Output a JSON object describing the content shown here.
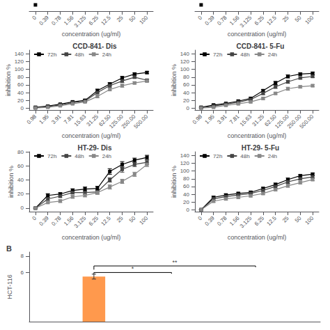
{
  "chart_data": [
    {
      "type": "line",
      "xlabel": "concentration (ug/ml)",
      "categories": [
        "0",
        "0.39",
        "0.78",
        "1.56",
        "3.125",
        "6.25",
        "12.5",
        "25",
        "50",
        "100"
      ],
      "values": [
        0.9,
        null,
        null,
        null,
        null,
        null,
        null,
        null,
        null,
        null
      ],
      "color": "#000000",
      "marker": "square",
      "ylim": [
        0,
        1
      ],
      "tick_labels": "x",
      "grid": false
    },
    {
      "type": "line",
      "xlabel": "concentration (ug/ml)",
      "categories": [
        "0",
        "0.39",
        "0.78",
        "1.56",
        "3.125",
        "6.25",
        "12.5",
        "25",
        "50",
        "100"
      ],
      "values": [
        0.9,
        null,
        null,
        null,
        null,
        null,
        null,
        null,
        null,
        null
      ],
      "color": "#000000",
      "marker": "square",
      "ylim": [
        0,
        1
      ],
      "tick_labels": "x",
      "grid": false
    },
    {
      "type": "line",
      "title": "CCD-841- Dis",
      "xlabel": "concentration (ug/ml)",
      "ylabel": "inhibition %",
      "categories": [
        "0.98",
        "1.95",
        "3.91",
        "7.81",
        "15.63",
        "31.25",
        "62.50",
        "125.00",
        "250.00",
        "500.00"
      ],
      "ylim": [
        -5,
        150
      ],
      "yticks": [
        0,
        20,
        40,
        60,
        80,
        100,
        120,
        140
      ],
      "grid": false,
      "legend": "upper left",
      "marker": "square",
      "series": [
        {
          "name": "72h",
          "color": "#000000",
          "values": [
            2,
            5,
            10,
            16,
            20,
            45,
            62,
            78,
            88,
            92
          ],
          "errors": [
            1.5,
            2,
            2,
            2.5,
            3,
            4,
            4,
            4,
            3,
            3
          ]
        },
        {
          "name": "48h",
          "color": "#444444",
          "values": [
            1,
            4,
            8,
            14,
            18,
            40,
            58,
            70,
            80,
            72
          ],
          "errors": [
            1,
            2,
            2,
            2,
            3,
            3,
            4,
            4,
            3,
            3
          ]
        },
        {
          "name": "24h",
          "color": "#888888",
          "values": [
            0,
            2,
            6,
            11,
            16,
            30,
            48,
            58,
            65,
            70
          ],
          "errors": [
            1,
            1.5,
            2,
            2,
            2.5,
            3,
            3,
            4,
            3,
            3
          ]
        }
      ]
    },
    {
      "type": "line",
      "title": "CCD-841- 5-Fu",
      "xlabel": "concentration (ug/ml)",
      "ylabel": "inhibition %",
      "categories": [
        "0.98",
        "1.95",
        "3.91",
        "7.81",
        "15.63",
        "31.25",
        "62.50",
        "125.00",
        "250.00",
        "500.00"
      ],
      "ylim": [
        -5,
        150
      ],
      "yticks": [
        0,
        20,
        40,
        60,
        80,
        100,
        120,
        140
      ],
      "grid": false,
      "legend": "upper left",
      "marker": "square",
      "series": [
        {
          "name": "72h",
          "color": "#000000",
          "values": [
            2,
            8,
            12,
            18,
            25,
            45,
            65,
            82,
            88,
            90
          ],
          "errors": [
            1.5,
            2,
            2,
            2.5,
            3,
            3,
            4,
            4,
            3,
            3
          ]
        },
        {
          "name": "48h",
          "color": "#444444",
          "values": [
            1,
            5,
            10,
            15,
            22,
            38,
            55,
            68,
            78,
            82
          ],
          "errors": [
            1,
            2,
            2,
            2,
            3,
            3,
            4,
            4,
            3,
            3
          ]
        },
        {
          "name": "24h",
          "color": "#888888",
          "values": [
            0,
            2,
            7,
            11,
            16,
            25,
            38,
            50,
            55,
            58
          ],
          "errors": [
            1,
            1.5,
            2,
            2,
            2.5,
            3,
            3,
            4,
            3,
            3
          ]
        }
      ]
    },
    {
      "type": "line",
      "title": "HT-29- Dis",
      "xlabel": "concentration (ug/ml)",
      "ylabel": "inhibition %",
      "categories": [
        "0",
        "0.39",
        "0.78",
        "1.56",
        "3.125",
        "6.25",
        "12.5",
        "25",
        "50",
        "100"
      ],
      "ylim": [
        -5,
        80
      ],
      "yticks": [
        0,
        20,
        40,
        60,
        80
      ],
      "grid": false,
      "legend": "upper left",
      "marker": "square",
      "series": [
        {
          "name": "72h",
          "color": "#000000",
          "values": [
            0,
            18,
            20,
            25,
            27,
            28,
            52,
            62,
            68,
            72
          ],
          "errors": [
            0,
            2.5,
            2,
            2.5,
            3,
            3,
            4,
            4,
            3,
            3
          ]
        },
        {
          "name": "48h",
          "color": "#444444",
          "values": [
            0,
            13,
            17,
            22,
            22,
            23,
            40,
            55,
            62,
            65
          ],
          "errors": [
            0,
            2,
            2,
            2,
            2.5,
            3,
            3,
            4,
            3,
            3
          ]
        },
        {
          "name": "24h",
          "color": "#888888",
          "values": [
            0,
            8,
            10,
            16,
            18,
            22,
            30,
            38,
            48,
            62
          ],
          "errors": [
            0,
            1.5,
            2,
            2,
            2,
            2.5,
            3,
            3,
            3,
            3
          ]
        }
      ]
    },
    {
      "type": "line",
      "title": "HT-29- 5-Fu",
      "xlabel": "concentration (ug/ml)",
      "ylabel": "inhibition %",
      "categories": [
        "0",
        "0.39",
        "0.78",
        "1.56",
        "3.125",
        "6.25",
        "12.5",
        "25",
        "50",
        "100"
      ],
      "ylim": [
        -5,
        150
      ],
      "yticks": [
        0,
        20,
        40,
        60,
        80,
        100,
        120,
        140
      ],
      "grid": false,
      "legend": "upper left",
      "marker": "square",
      "series": [
        {
          "name": "72h",
          "color": "#000000",
          "values": [
            0,
            32,
            38,
            42,
            45,
            55,
            65,
            78,
            88,
            92
          ],
          "errors": [
            0,
            3,
            3,
            3,
            3,
            3,
            4,
            4,
            3,
            3
          ]
        },
        {
          "name": "48h",
          "color": "#444444",
          "values": [
            0,
            28,
            34,
            38,
            42,
            50,
            60,
            72,
            80,
            85
          ],
          "errors": [
            0,
            3,
            3,
            3,
            3,
            3,
            4,
            4,
            3,
            3
          ]
        },
        {
          "name": "24h",
          "color": "#888888",
          "values": [
            0,
            22,
            28,
            32,
            36,
            42,
            52,
            62,
            70,
            78
          ],
          "errors": [
            0,
            3,
            3,
            3,
            3,
            3,
            3,
            4,
            3,
            3
          ]
        }
      ]
    },
    {
      "type": "bar",
      "title": "B",
      "ylabel": "HCT-116",
      "x": [
        1
      ],
      "values": [
        5.5
      ],
      "errors": [
        0.3
      ],
      "xlim": [
        0,
        4.5
      ],
      "ylim": [
        0,
        8.5
      ],
      "yticks": [
        6,
        8
      ],
      "tick_labels": "y",
      "grid": false,
      "annotations": [
        {
          "text": "*",
          "color": "#000000",
          "x": [
            1,
            1,
            2.2,
            2.2
          ],
          "y": [
            5.8,
            6.0,
            6.0,
            5.85
          ]
        },
        {
          "text": "**",
          "color": "#000000",
          "x": [
            1,
            1,
            3.5,
            3.5
          ],
          "y": [
            6.35,
            6.8,
            6.8,
            6.65
          ]
        }
      ]
    }
  ]
}
